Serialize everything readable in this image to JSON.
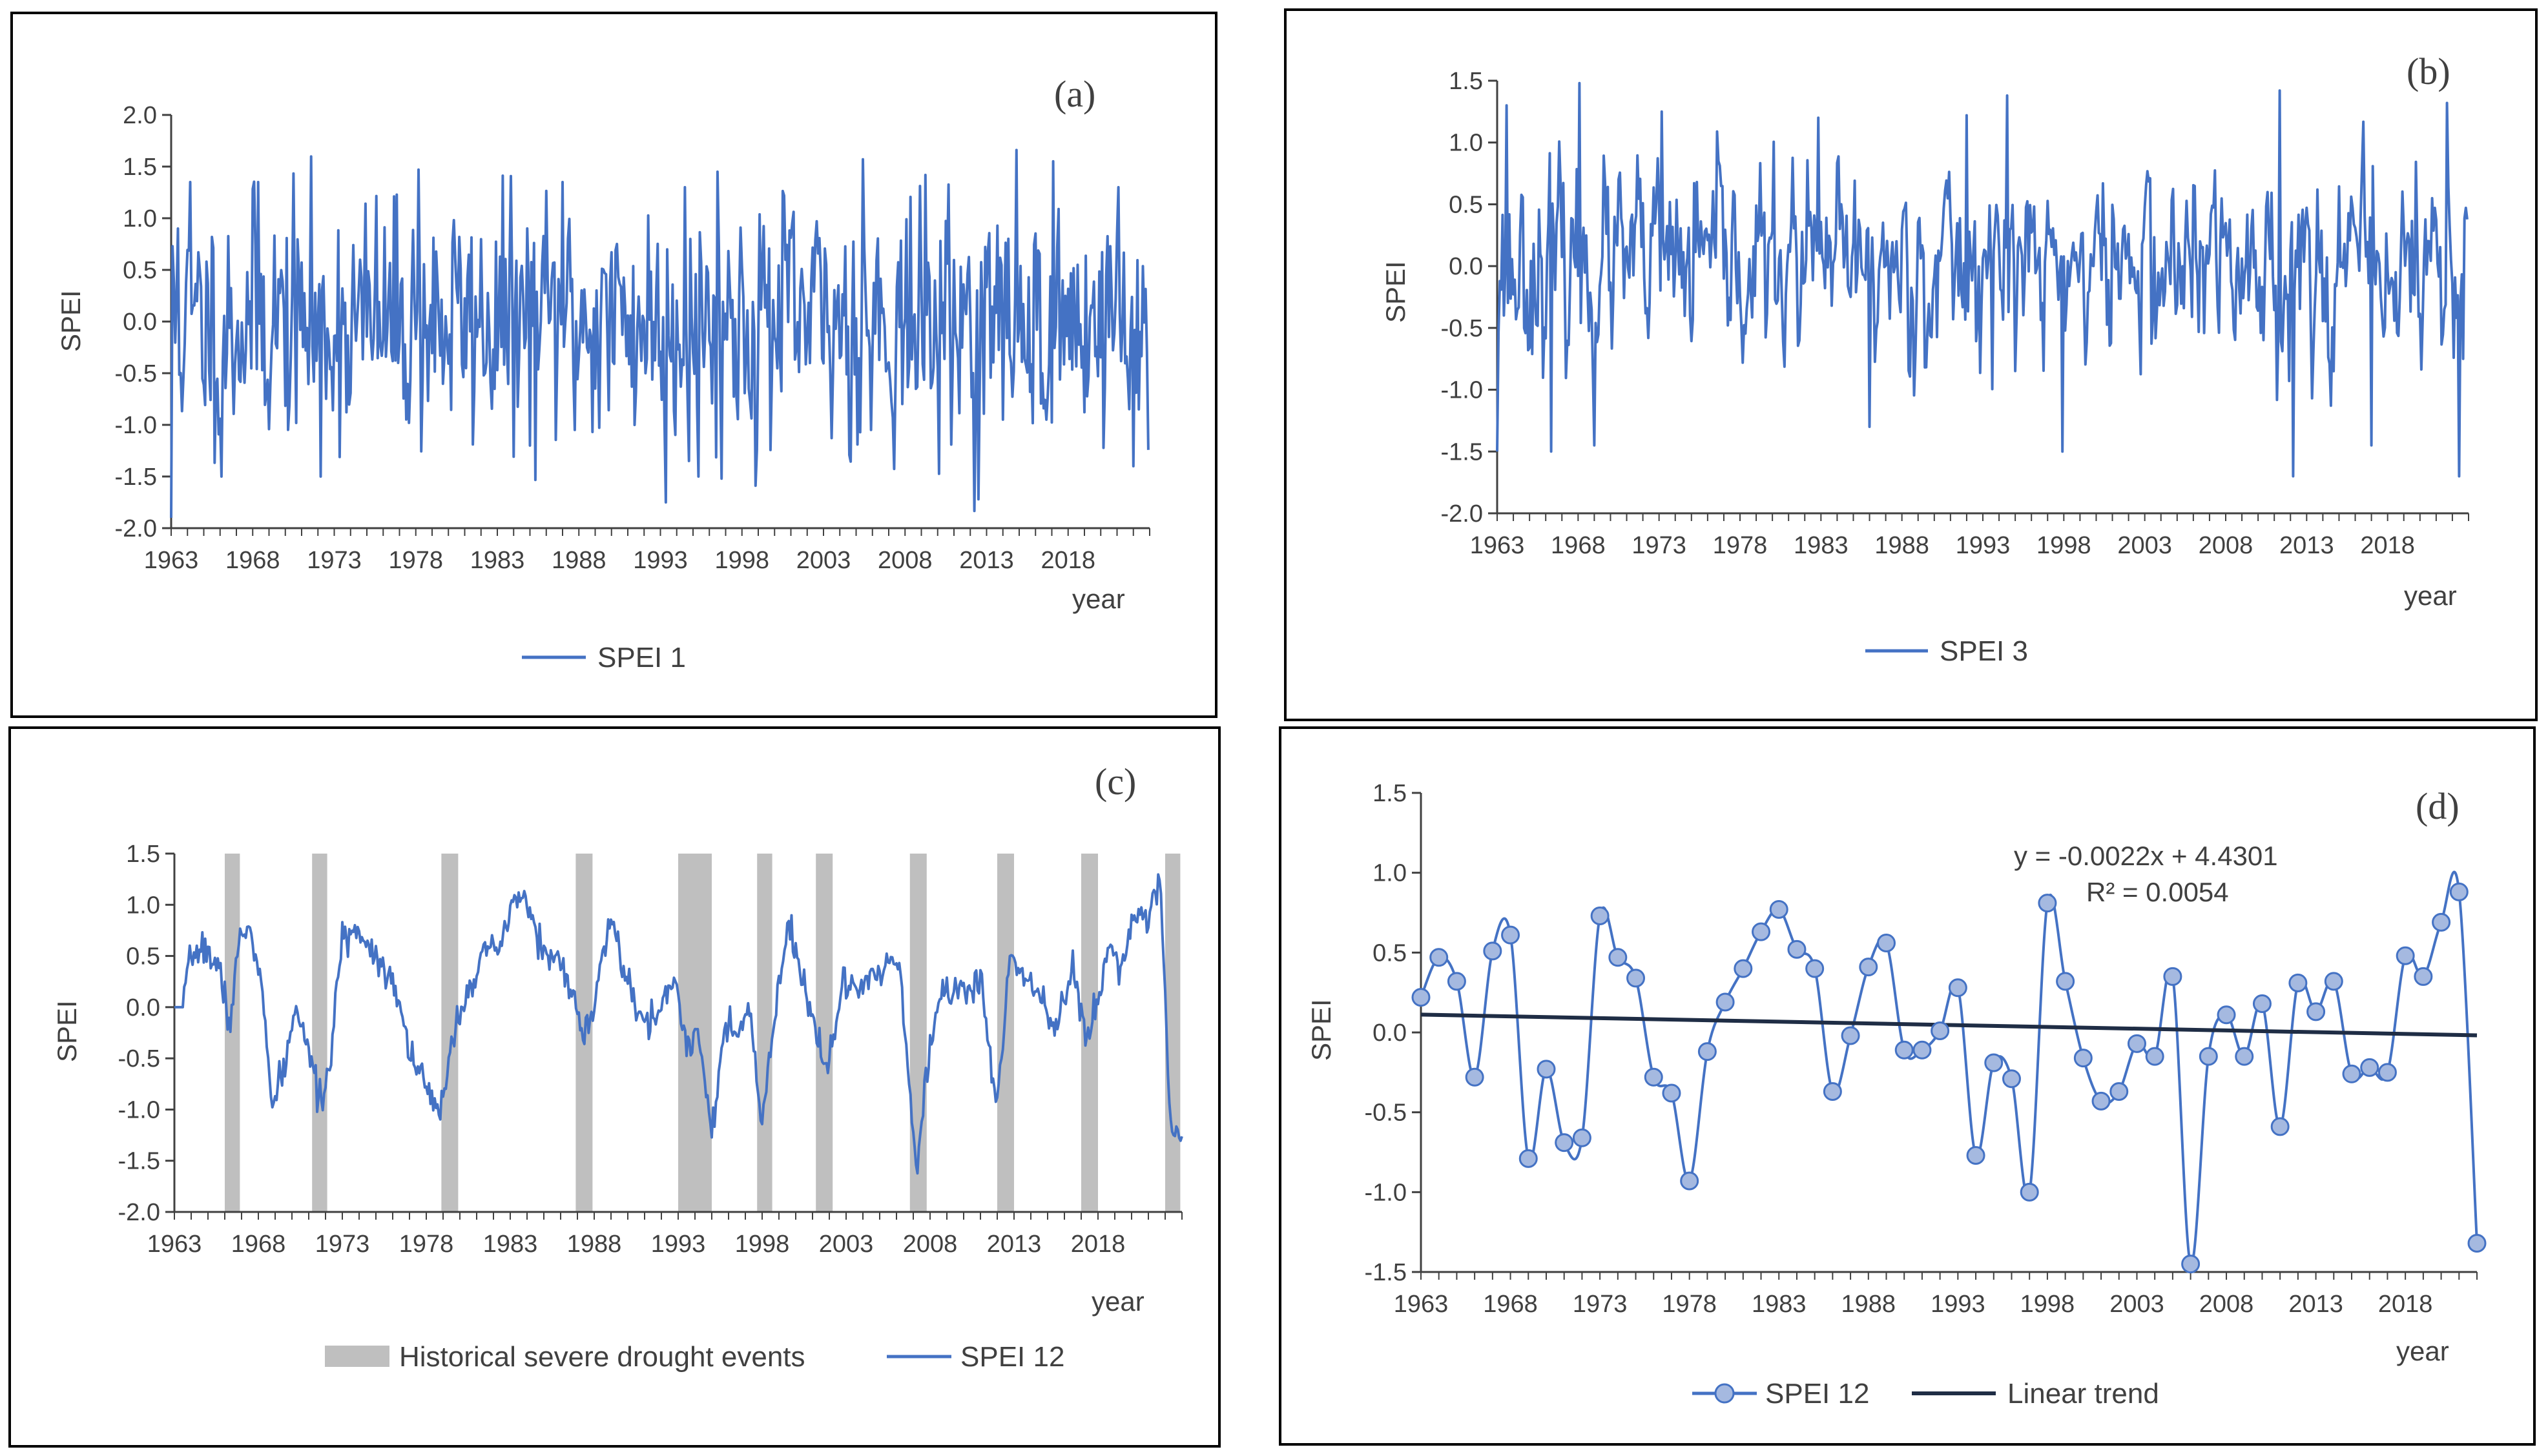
{
  "colors": {
    "series": "#4472c4",
    "marker_fill": "#a5b9e0",
    "trend": "#1f2d45",
    "shade": "#bfbfbf",
    "axis": "#404040",
    "frame": "#000000"
  },
  "chart_data": [
    {
      "id": "a",
      "type": "line",
      "panel_label": "(a)",
      "ylabel": "SPEI",
      "xlabel": "year",
      "ylim": [
        -2.0,
        2.0
      ],
      "yticks": [
        "2.0",
        "1.5",
        "1.0",
        "0.5",
        "0.0",
        "-0.5",
        "-1.0",
        "-1.5",
        "-2.0"
      ],
      "xlim": [
        1963,
        2023
      ],
      "xticks": [
        "1963",
        "1968",
        "1973",
        "1978",
        "1983",
        "1988",
        "1993",
        "1998",
        "2003",
        "2008",
        "2013",
        "2018"
      ],
      "legend": [
        "SPEI 1"
      ],
      "series": [
        {
          "name": "SPEI 1",
          "frequency": "monthly",
          "start": 1963,
          "amplitude_sd": 0.55,
          "notable_extremes": [
            [
              1963.0,
              -1.9
            ],
            [
              1963.4,
              0.9
            ],
            [
              1964.2,
              1.35
            ],
            [
              1966.1,
              -1.5
            ],
            [
              1968.3,
              1.35
            ],
            [
              1972.2,
              -1.5
            ],
            [
              1978.2,
              1.47
            ],
            [
              1985.0,
              -1.2
            ],
            [
              1987.0,
              1.35
            ],
            [
              1993.3,
              -1.75
            ],
            [
              1994.5,
              1.3
            ],
            [
              1995.3,
              -1.5
            ],
            [
              1996.5,
              1.45
            ],
            [
              2005.4,
              1.57
            ],
            [
              2012.5,
              -1.72
            ],
            [
              2021.1,
              1.3
            ],
            [
              2022.0,
              -1.4
            ],
            [
              2022.3,
              -0.85
            ]
          ]
        }
      ]
    },
    {
      "id": "b",
      "type": "line",
      "panel_label": "(b)",
      "ylabel": "SPEI",
      "xlabel": "year",
      "ylim": [
        -2.0,
        1.5
      ],
      "yticks": [
        "1.5",
        "1.0",
        "0.5",
        "0.0",
        "-0.5",
        "-1.0",
        "-1.5",
        "-2.0"
      ],
      "xlim": [
        1963,
        2023
      ],
      "xticks": [
        "1963",
        "1968",
        "1973",
        "1978",
        "1983",
        "1988",
        "1993",
        "1998",
        "2003",
        "2008",
        "2013",
        "2018"
      ],
      "legend": [
        "SPEI 3"
      ],
      "series": [
        {
          "name": "SPEI 3",
          "frequency": "monthly",
          "start": 1963,
          "amplitude_sd": 0.5,
          "notable_extremes": [
            [
              1963.0,
              -1.5
            ],
            [
              1963.6,
              1.3
            ],
            [
              1966.3,
              -1.5
            ],
            [
              1968.1,
              1.48
            ],
            [
              1969.0,
              -1.45
            ],
            [
              1973.2,
              1.25
            ],
            [
              1982.8,
              1.2
            ],
            [
              1986.0,
              -1.3
            ],
            [
              1992.0,
              1.22
            ],
            [
              1994.5,
              1.38
            ],
            [
              1997.9,
              -1.5
            ],
            [
              2011.3,
              1.42
            ],
            [
              2012.2,
              -1.7
            ],
            [
              2017.0,
              -1.45
            ],
            [
              2021.7,
              1.32
            ],
            [
              2022.4,
              -1.7
            ],
            [
              2022.7,
              -0.75
            ]
          ]
        }
      ]
    },
    {
      "id": "c",
      "type": "line",
      "panel_label": "(c)",
      "ylabel": "SPEI",
      "xlabel": "year",
      "ylim": [
        -2.0,
        1.5
      ],
      "yticks": [
        "1.5",
        "1.0",
        "0.5",
        "0.0",
        "-0.5",
        "-1.0",
        "-1.5",
        "-2.0"
      ],
      "xlim": [
        1963,
        2023
      ],
      "xticks": [
        "1963",
        "1968",
        "1973",
        "1978",
        "1983",
        "1988",
        "1993",
        "1998",
        "2003",
        "2008",
        "2013",
        "2018"
      ],
      "legend": [
        "Historical severe drought events",
        "SPEI 12"
      ],
      "drought_events": [
        [
          1966.0,
          1966.9
        ],
        [
          1971.2,
          1972.1
        ],
        [
          1978.9,
          1979.9
        ],
        [
          1986.9,
          1987.9
        ],
        [
          1993.0,
          1995.0
        ],
        [
          1997.7,
          1998.6
        ],
        [
          2001.2,
          2002.2
        ],
        [
          2006.8,
          2007.8
        ],
        [
          2012.0,
          2013.0
        ],
        [
          2017.0,
          2018.0
        ],
        [
          2022.0,
          2022.9
        ]
      ],
      "series": [
        {
          "name": "SPEI 12",
          "frequency": "monthly",
          "start": 1963,
          "anchors": [
            [
              1963,
              0.0
            ],
            [
              1963.5,
              0.0
            ],
            [
              1964.0,
              0.5
            ],
            [
              1964.8,
              0.6
            ],
            [
              1965.8,
              0.3
            ],
            [
              1966.3,
              -0.2
            ],
            [
              1966.8,
              0.6
            ],
            [
              1967.5,
              0.8
            ],
            [
              1968.2,
              0.2
            ],
            [
              1968.8,
              -1.0
            ],
            [
              1969.5,
              -0.6
            ],
            [
              1970.3,
              0.0
            ],
            [
              1971.0,
              -0.4
            ],
            [
              1971.5,
              -0.9
            ],
            [
              1972.2,
              -0.7
            ],
            [
              1973.0,
              0.7
            ],
            [
              1974.0,
              0.75
            ],
            [
              1975.0,
              0.5
            ],
            [
              1976.0,
              0.3
            ],
            [
              1977.0,
              -0.4
            ],
            [
              1978.0,
              -0.8
            ],
            [
              1978.8,
              -1.1
            ],
            [
              1979.5,
              -0.3
            ],
            [
              1980.5,
              0.2
            ],
            [
              1981.5,
              0.5
            ],
            [
              1982.5,
              0.6
            ],
            [
              1983.3,
              1.1
            ],
            [
              1984.0,
              1.0
            ],
            [
              1985.0,
              0.55
            ],
            [
              1986.5,
              0.3
            ],
            [
              1987.3,
              -0.3
            ],
            [
              1988.0,
              0.0
            ],
            [
              1989.0,
              0.9
            ],
            [
              1990.0,
              0.2
            ],
            [
              1991.0,
              -0.2
            ],
            [
              1992.0,
              0.0
            ],
            [
              1992.8,
              0.3
            ],
            [
              1993.5,
              -0.4
            ],
            [
              1994.2,
              -0.2
            ],
            [
              1995.0,
              -1.2
            ],
            [
              1995.8,
              -0.2
            ],
            [
              1996.5,
              -0.3
            ],
            [
              1997.3,
              0.0
            ],
            [
              1997.9,
              -1.2
            ],
            [
              1998.7,
              -0.2
            ],
            [
              1999.5,
              0.8
            ],
            [
              2000.5,
              0.2
            ],
            [
              2001.3,
              -0.3
            ],
            [
              2002.0,
              -0.55
            ],
            [
              2002.8,
              0.2
            ],
            [
              2004.0,
              0.2
            ],
            [
              2005.0,
              0.3
            ],
            [
              2006.0,
              0.5
            ],
            [
              2006.6,
              -0.3
            ],
            [
              2007.2,
              -1.7
            ],
            [
              2007.7,
              -0.8
            ],
            [
              2008.5,
              0.1
            ],
            [
              2009.5,
              0.2
            ],
            [
              2010.5,
              0.15
            ],
            [
              2011.0,
              0.3
            ],
            [
              2012.0,
              -1.0
            ],
            [
              2012.8,
              0.6
            ],
            [
              2013.5,
              0.3
            ],
            [
              2014.5,
              0.2
            ],
            [
              2015.5,
              -0.2
            ],
            [
              2016.5,
              0.35
            ],
            [
              2017.3,
              -0.3
            ],
            [
              2018.0,
              0.1
            ],
            [
              2018.7,
              0.6
            ],
            [
              2019.5,
              0.4
            ],
            [
              2020.0,
              0.9
            ],
            [
              2021.0,
              0.9
            ],
            [
              2021.7,
              1.3
            ],
            [
              2022.2,
              -0.8
            ],
            [
              2022.5,
              -1.3
            ],
            [
              2022.9,
              -1.3
            ]
          ]
        }
      ]
    },
    {
      "id": "d",
      "type": "line",
      "panel_label": "(d)",
      "ylabel": "SPEI",
      "xlabel": "year",
      "ylim": [
        -1.5,
        1.5
      ],
      "yticks": [
        "1.5",
        "1.0",
        "0.5",
        "0.0",
        "-0.5",
        "-1.0",
        "-1.5"
      ],
      "xlim": [
        1963,
        2022
      ],
      "xticks": [
        "1963",
        "1968",
        "1973",
        "1978",
        "1983",
        "1988",
        "1993",
        "1998",
        "2003",
        "2008",
        "2013",
        "2018"
      ],
      "legend": [
        "SPEI 12",
        "Linear trend"
      ],
      "equation": "y = -0.0022x + 4.4301",
      "r_squared": "R² = 0.0054",
      "trend": {
        "slope": -0.0022,
        "intercept": 4.4301,
        "x_index_start": 1
      },
      "series": [
        {
          "name": "SPEI 12",
          "x": [
            1963,
            1964,
            1965,
            1966,
            1967,
            1968,
            1969,
            1970,
            1971,
            1972,
            1973,
            1974,
            1975,
            1976,
            1977,
            1978,
            1979,
            1980,
            1981,
            1982,
            1983,
            1984,
            1985,
            1986,
            1987,
            1988,
            1989,
            1990,
            1991,
            1992,
            1993,
            1994,
            1995,
            1996,
            1997,
            1998,
            1999,
            2000,
            2001,
            2002,
            2003,
            2004,
            2005,
            2006,
            2007,
            2008,
            2009,
            2010,
            2011,
            2012,
            2013,
            2014,
            2015,
            2016,
            2017,
            2018,
            2019,
            2020,
            2021,
            2022
          ],
          "values": [
            0.22,
            0.47,
            0.32,
            -0.28,
            0.51,
            0.61,
            -0.79,
            -0.23,
            -0.69,
            -0.66,
            0.73,
            0.47,
            0.34,
            -0.28,
            -0.38,
            -0.93,
            -0.12,
            0.19,
            0.4,
            0.63,
            0.77,
            0.52,
            0.4,
            -0.37,
            -0.02,
            0.41,
            0.56,
            -0.11,
            -0.11,
            0.01,
            0.28,
            -0.77,
            -0.19,
            -0.29,
            -1.0,
            0.81,
            0.32,
            -0.16,
            -0.43,
            -0.37,
            -0.07,
            -0.15,
            0.35,
            -1.45,
            -0.15,
            0.11,
            -0.15,
            0.18,
            -0.59,
            0.31,
            0.13,
            0.32,
            -0.26,
            -0.22,
            -0.25,
            0.48,
            0.35,
            0.69,
            0.88,
            -1.32
          ]
        }
      ]
    }
  ]
}
